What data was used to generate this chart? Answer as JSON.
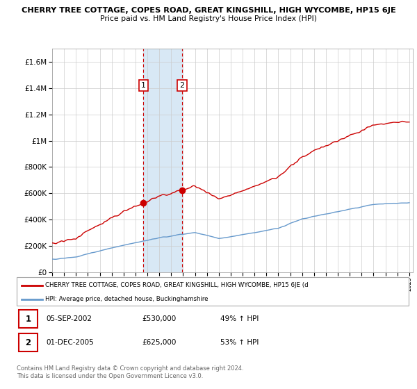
{
  "title": "CHERRY TREE COTTAGE, COPES ROAD, GREAT KINGSHILL, HIGH WYCOMBE, HP15 6JE",
  "subtitle": "Price paid vs. HM Land Registry's House Price Index (HPI)",
  "ylim": [
    0,
    1700000
  ],
  "yticks": [
    0,
    200000,
    400000,
    600000,
    800000,
    1000000,
    1200000,
    1400000,
    1600000
  ],
  "ytick_labels": [
    "£0",
    "£200K",
    "£400K",
    "£600K",
    "£800K",
    "£1M",
    "£1.2M",
    "£1.4M",
    "£1.6M"
  ],
  "sale1_date": 2002.67,
  "sale1_price": 530000,
  "sale2_date": 2005.92,
  "sale2_price": 625000,
  "red_color": "#cc0000",
  "blue_color": "#6699cc",
  "highlight_color": "#d8e8f5",
  "legend_red_label": "CHERRY TREE COTTAGE, COPES ROAD, GREAT KINGSHILL, HIGH WYCOMBE, HP15 6JE (d",
  "legend_blue_label": "HPI: Average price, detached house, Buckinghamshire",
  "footer": "Contains HM Land Registry data © Crown copyright and database right 2024.\nThis data is licensed under the Open Government Licence v3.0.",
  "table_rows": [
    {
      "num": "1",
      "date": "05-SEP-2002",
      "price": "£530,000",
      "hpi": "49% ↑ HPI"
    },
    {
      "num": "2",
      "date": "01-DEC-2005",
      "price": "£625,000",
      "hpi": "53% ↑ HPI"
    }
  ]
}
